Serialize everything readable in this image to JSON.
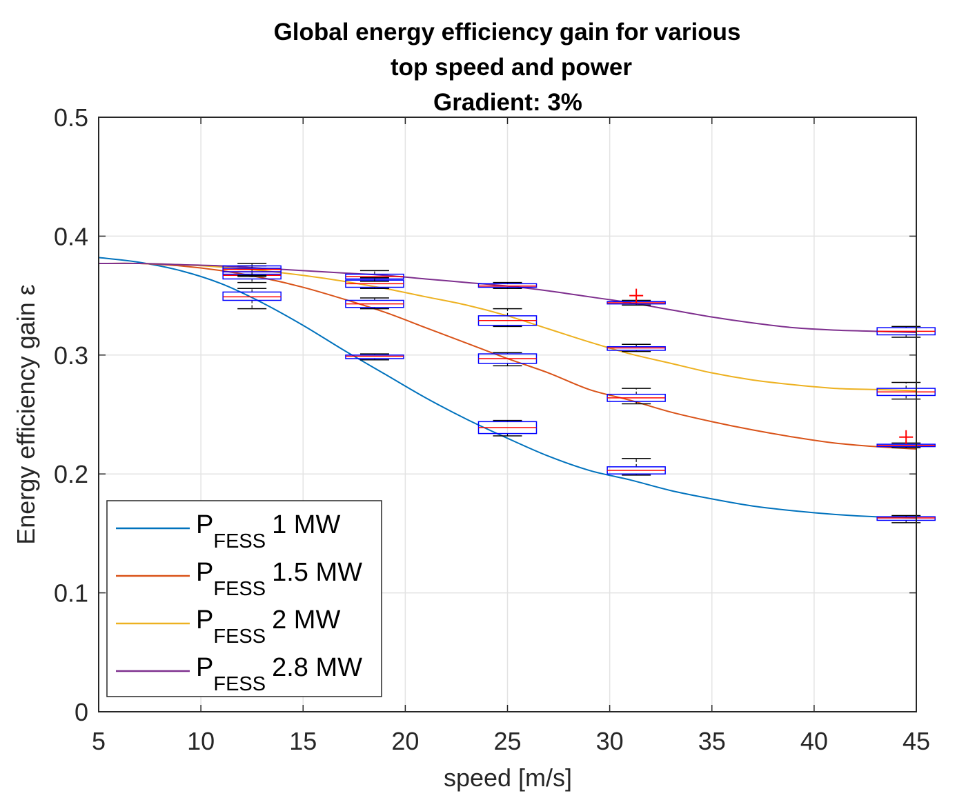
{
  "chart_data": {
    "type": "line",
    "title_lines": [
      "Global energy efficiency gain for various",
      "top speed and power",
      "Gradient: 3%"
    ],
    "xlabel": "speed [m/s]",
    "ylabel": "Energy efficiency gain ε",
    "xlim": [
      5,
      45
    ],
    "ylim": [
      0,
      0.5
    ],
    "xticks": [
      5,
      10,
      15,
      20,
      25,
      30,
      35,
      40,
      45
    ],
    "yticks": [
      0,
      0.1,
      0.2,
      0.3,
      0.4,
      0.5
    ],
    "xtick_labels": [
      "5",
      "10",
      "15",
      "20",
      "25",
      "30",
      "35",
      "40",
      "45"
    ],
    "ytick_labels": [
      "0",
      "0.1",
      "0.2",
      "0.3",
      "0.4",
      "0.5"
    ],
    "grid": true,
    "legend_position": "bottom-left",
    "series": [
      {
        "name": "P FESS 1 MW",
        "legend_main": "P",
        "legend_sub": "FESS",
        "legend_value": "1 MW",
        "color": "#0072BD",
        "x": [
          5,
          7,
          9,
          11,
          13,
          15,
          17,
          19,
          21,
          23,
          25,
          27,
          29,
          31,
          33,
          35,
          37,
          39,
          41,
          43,
          45
        ],
        "y": [
          0.382,
          0.378,
          0.371,
          0.36,
          0.344,
          0.325,
          0.304,
          0.284,
          0.264,
          0.246,
          0.23,
          0.215,
          0.203,
          0.195,
          0.186,
          0.179,
          0.173,
          0.169,
          0.166,
          0.164,
          0.163
        ],
        "boxes": [
          {
            "x": 12.5,
            "q1": 0.346,
            "median": 0.349,
            "q3": 0.353,
            "min": 0.339,
            "max": 0.356
          },
          {
            "x": 18.5,
            "q1": 0.297,
            "median": 0.299,
            "q3": 0.3,
            "min": 0.296,
            "max": 0.301
          },
          {
            "x": 25,
            "q1": 0.234,
            "median": 0.239,
            "q3": 0.244,
            "min": 0.232,
            "max": 0.245
          },
          {
            "x": 31.3,
            "q1": 0.2,
            "median": 0.203,
            "q3": 0.206,
            "min": 0.199,
            "max": 0.213
          },
          {
            "x": 44.5,
            "q1": 0.161,
            "median": 0.163,
            "q3": 0.164,
            "min": 0.159,
            "max": 0.165
          }
        ],
        "outliers": []
      },
      {
        "name": "P FESS 1.5 MW",
        "legend_main": "P",
        "legend_sub": "FESS",
        "legend_value": "1.5 MW",
        "color": "#D95319",
        "x": [
          5,
          7,
          9,
          11,
          13,
          15,
          17,
          19,
          21,
          23,
          25,
          27,
          29,
          31,
          33,
          35,
          37,
          39,
          41,
          43,
          45
        ],
        "y": [
          0.377,
          0.377,
          0.375,
          0.371,
          0.365,
          0.357,
          0.347,
          0.336,
          0.323,
          0.31,
          0.297,
          0.285,
          0.271,
          0.262,
          0.252,
          0.244,
          0.237,
          0.231,
          0.226,
          0.223,
          0.221
        ],
        "boxes": [
          {
            "x": 12.5,
            "q1": 0.364,
            "median": 0.367,
            "q3": 0.37,
            "min": 0.361,
            "max": 0.372
          },
          {
            "x": 18.5,
            "q1": 0.34,
            "median": 0.343,
            "q3": 0.346,
            "min": 0.339,
            "max": 0.348
          },
          {
            "x": 25,
            "q1": 0.293,
            "median": 0.297,
            "q3": 0.301,
            "min": 0.291,
            "max": 0.302
          },
          {
            "x": 31.3,
            "q1": 0.261,
            "median": 0.264,
            "q3": 0.267,
            "min": 0.259,
            "max": 0.272
          },
          {
            "x": 44.5,
            "q1": 0.223,
            "median": 0.224,
            "q3": 0.225,
            "min": 0.222,
            "max": 0.226
          }
        ],
        "outliers": [
          {
            "x": 44.5,
            "y": 0.231
          }
        ]
      },
      {
        "name": "P FESS 2 MW",
        "legend_main": "P",
        "legend_sub": "FESS",
        "legend_value": "2 MW",
        "color": "#EDB120",
        "x": [
          5,
          7,
          9,
          11,
          13,
          15,
          17,
          19,
          21,
          23,
          25,
          27,
          29,
          31,
          33,
          35,
          37,
          39,
          41,
          43,
          45
        ],
        "y": [
          0.377,
          0.377,
          0.376,
          0.374,
          0.371,
          0.367,
          0.362,
          0.356,
          0.349,
          0.342,
          0.333,
          0.322,
          0.311,
          0.301,
          0.293,
          0.285,
          0.279,
          0.275,
          0.272,
          0.271,
          0.27
        ],
        "boxes": [
          {
            "x": 12.5,
            "q1": 0.368,
            "median": 0.37,
            "q3": 0.373,
            "min": 0.366,
            "max": 0.375
          },
          {
            "x": 18.5,
            "q1": 0.357,
            "median": 0.36,
            "q3": 0.363,
            "min": 0.356,
            "max": 0.365
          },
          {
            "x": 25,
            "q1": 0.325,
            "median": 0.329,
            "q3": 0.333,
            "min": 0.324,
            "max": 0.339
          },
          {
            "x": 31.3,
            "q1": 0.304,
            "median": 0.306,
            "q3": 0.307,
            "min": 0.303,
            "max": 0.309
          },
          {
            "x": 44.5,
            "q1": 0.266,
            "median": 0.269,
            "q3": 0.272,
            "min": 0.263,
            "max": 0.277
          }
        ],
        "outliers": []
      },
      {
        "name": "P FESS 2.8 MW",
        "legend_main": "P",
        "legend_sub": "FESS",
        "legend_value": "2.8 MW",
        "color": "#7E2F8E",
        "x": [
          5,
          7,
          9,
          11,
          13,
          15,
          17,
          19,
          21,
          23,
          25,
          27,
          29,
          31,
          33,
          35,
          37,
          39,
          41,
          43,
          45
        ],
        "y": [
          0.377,
          0.377,
          0.376,
          0.375,
          0.373,
          0.371,
          0.369,
          0.367,
          0.364,
          0.361,
          0.358,
          0.354,
          0.349,
          0.344,
          0.338,
          0.332,
          0.327,
          0.323,
          0.321,
          0.32,
          0.319
        ],
        "boxes": [
          {
            "x": 12.5,
            "q1": 0.37,
            "median": 0.372,
            "q3": 0.375,
            "min": 0.367,
            "max": 0.377
          },
          {
            "x": 18.5,
            "q1": 0.364,
            "median": 0.366,
            "q3": 0.368,
            "min": 0.362,
            "max": 0.371
          },
          {
            "x": 25,
            "q1": 0.357,
            "median": 0.358,
            "q3": 0.36,
            "min": 0.356,
            "max": 0.361
          },
          {
            "x": 31.3,
            "q1": 0.343,
            "median": 0.344,
            "q3": 0.345,
            "min": 0.342,
            "max": 0.346
          },
          {
            "x": 44.5,
            "q1": 0.317,
            "median": 0.32,
            "q3": 0.323,
            "min": 0.315,
            "max": 0.324
          }
        ],
        "outliers": [
          {
            "x": 31.3,
            "y": 0.35
          }
        ]
      }
    ],
    "box_edge_color": "#0000FF",
    "median_color": "#FF0000",
    "whisker_color": "#000000",
    "outlier_color": "#FF0000"
  }
}
